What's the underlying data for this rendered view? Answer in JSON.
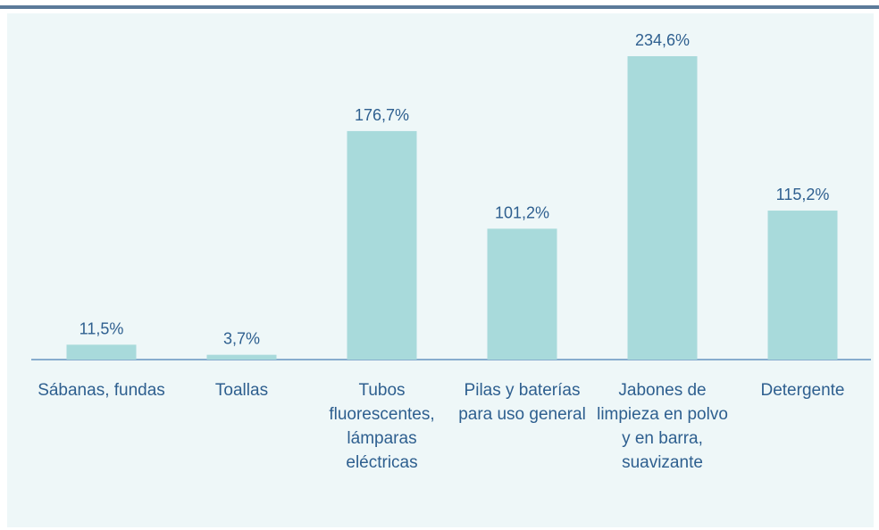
{
  "chart_data": {
    "type": "bar",
    "categories": [
      "Sábanas, fundas",
      "Toallas",
      "Tubos fluorescentes, lámparas eléctricas",
      "Pilas y baterías para uso general",
      "Jabones de limpieza en polvo y en barra, suavizante",
      "Detergente"
    ],
    "values": [
      11.5,
      3.7,
      176.7,
      101.2,
      234.6,
      115.2
    ],
    "value_labels": [
      "11,5%",
      "3,7%",
      "176,7%",
      "101,2%",
      "234,6%",
      "115,2%"
    ],
    "color": "#a8dadb"
  }
}
